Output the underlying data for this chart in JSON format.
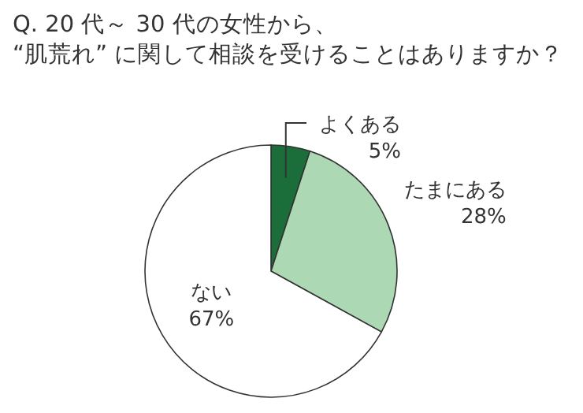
{
  "chart_data": {
    "type": "pie",
    "title": "Q. 20 代～ 30 代の女性から、\n“肌荒れ” に関して相談を受けることはありますか？",
    "categories": [
      "よくある",
      "たまにある",
      "ない"
    ],
    "values": [
      5,
      28,
      67
    ],
    "colors": [
      "#1b6e3a",
      "#acd9b4",
      "#ffffff"
    ],
    "value_labels": [
      "5%",
      "28%",
      "67%"
    ]
  }
}
